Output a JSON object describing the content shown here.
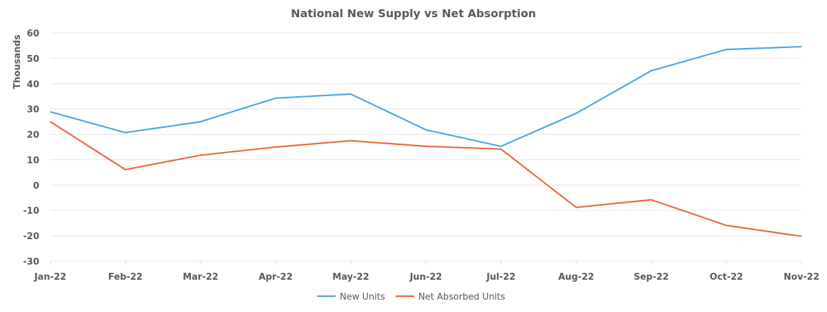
{
  "chart_data": {
    "type": "line",
    "title": "National New Supply vs Net Absorption",
    "xlabel": "",
    "ylabel": "Thousands",
    "ylim": [
      -30,
      60
    ],
    "yticks": [
      "60",
      "50",
      "40",
      "30",
      "20",
      "10",
      "0",
      "-10",
      "-20",
      "-30"
    ],
    "grid": true,
    "legend": "bottom",
    "categories": [
      "Jan-22",
      "Feb-22",
      "Mar-22",
      "Apr-22",
      "May-22",
      "Jun-22",
      "Jul-22",
      "Aug-22",
      "Sep-22",
      "Oct-22",
      "Nov-22"
    ],
    "series": [
      {
        "name": "New Units",
        "color": "#4aa8e0",
        "values": [
          28.9,
          20.7,
          25.0,
          34.3,
          35.9,
          21.8,
          15.3,
          28.3,
          45.1,
          53.5,
          54.6
        ]
      },
      {
        "name": "Net Absorbed Units",
        "color": "#e8693f",
        "values": [
          25.0,
          6.1,
          11.8,
          15.0,
          17.5,
          15.3,
          14.2,
          -8.8,
          -5.8,
          -15.9,
          -20.2
        ]
      }
    ]
  }
}
